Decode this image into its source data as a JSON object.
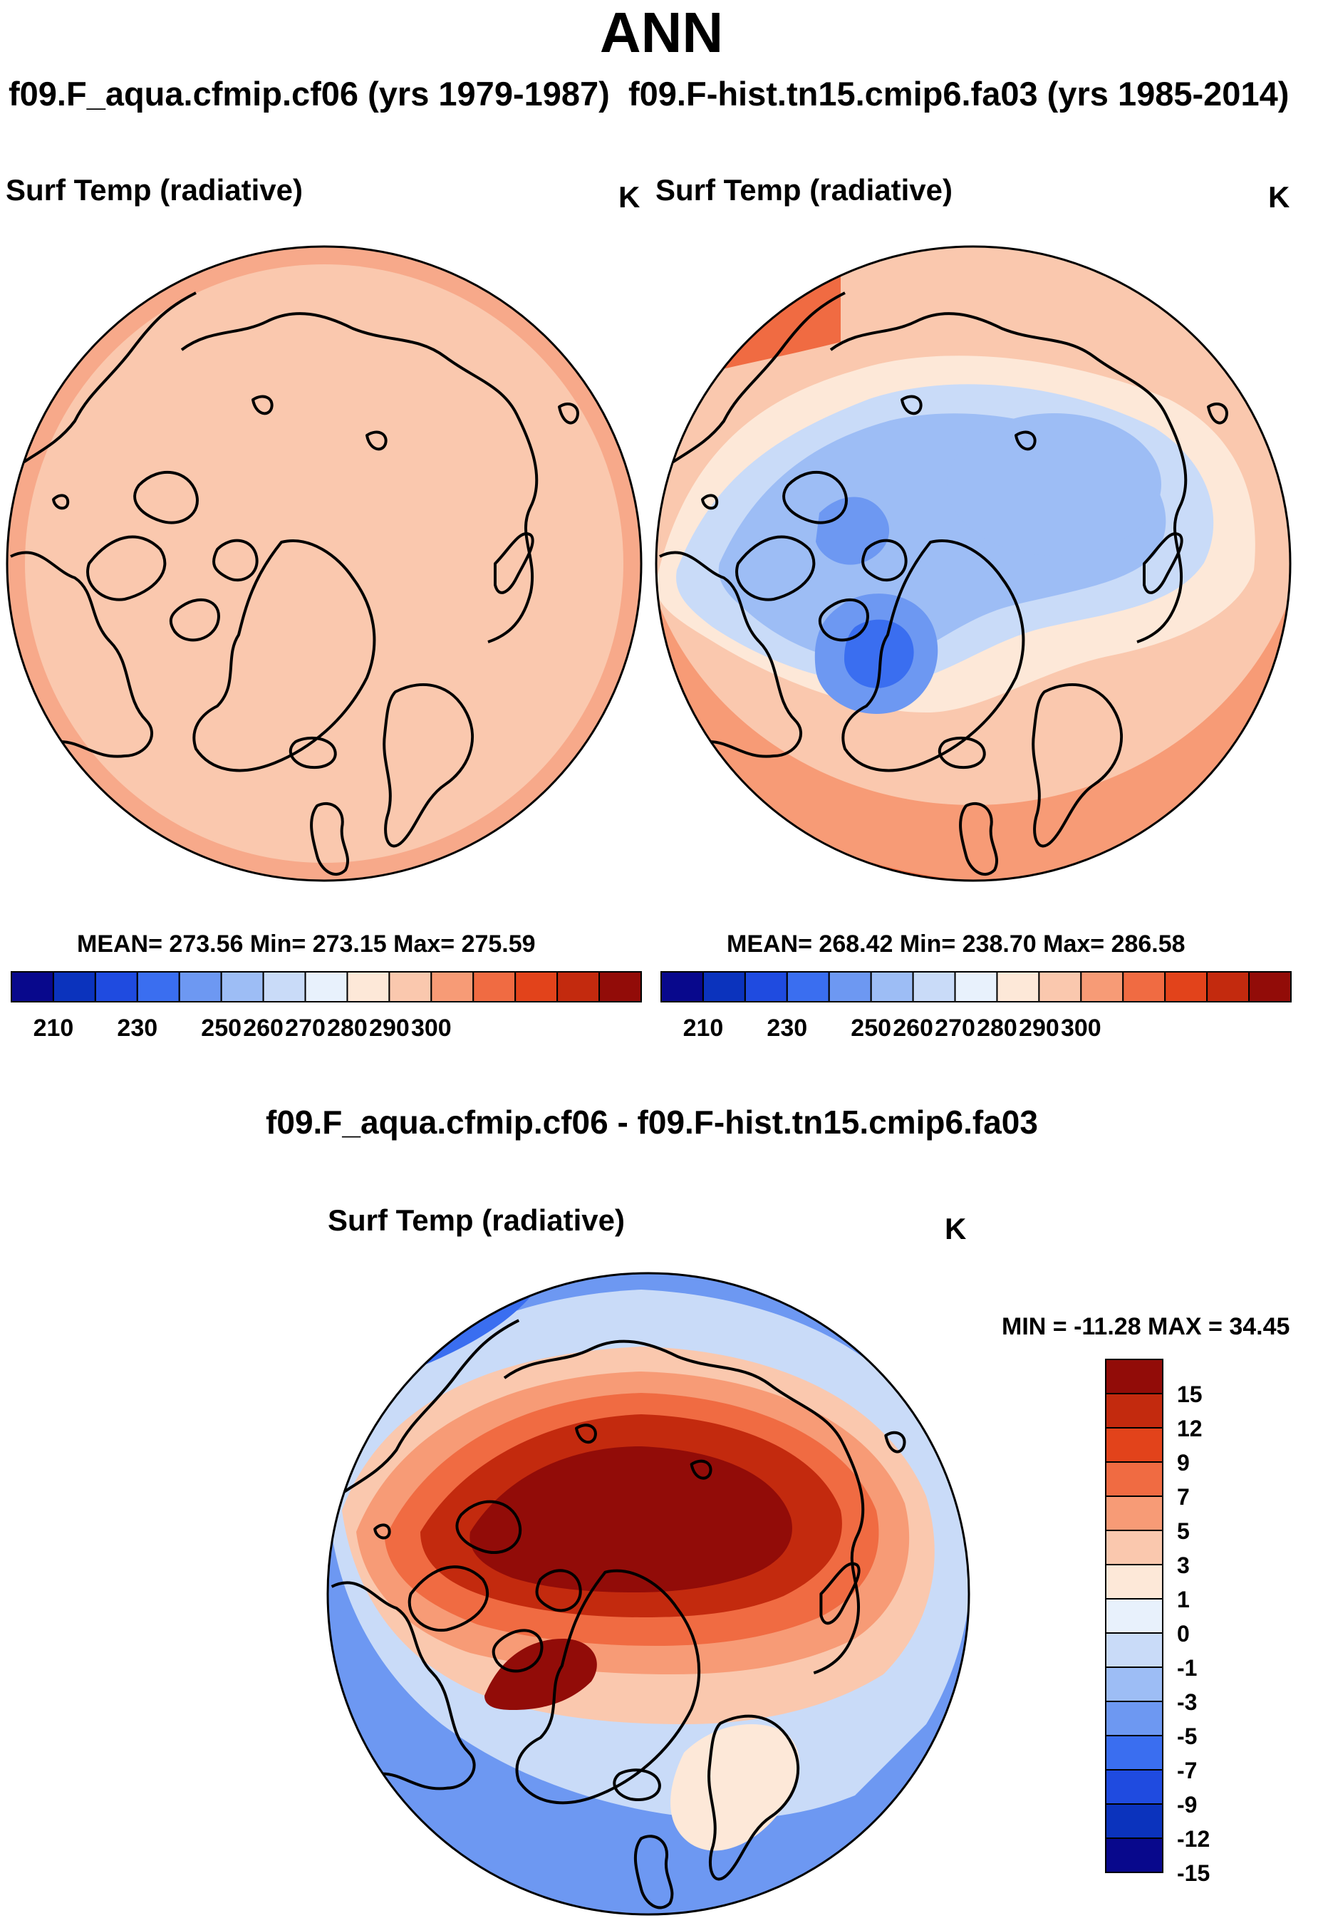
{
  "header": {
    "title": "ANN",
    "case1_title": "f09.F_aqua.cfmip.cf06 (yrs 1979-1987)",
    "case2_title": "f09.F-hist.tn15.cmip6.fa03 (yrs 1985-2014)"
  },
  "panel1": {
    "variable": "Surf Temp (radiative)",
    "units": "K",
    "stats": "MEAN= 273.56  Min= 273.15  Max= 275.59"
  },
  "panel2": {
    "variable": "Surf Temp (radiative)",
    "units": "K",
    "stats": "MEAN= 268.42  Min= 238.70  Max= 286.58"
  },
  "diff_panel": {
    "title": "f09.F_aqua.cfmip.cf06 - f09.F-hist.tn15.cmip6.fa03",
    "variable": "Surf Temp (radiative)",
    "units": "K",
    "range": "MIN = -11.28 MAX =  34.45"
  },
  "colorbar_abs": {
    "labels": [
      "210",
      "230",
      "250",
      "260",
      "270",
      "280",
      "290",
      "300"
    ],
    "colors": [
      "#08088c",
      "#0b33bd",
      "#1f4be0",
      "#3a6ef0",
      "#6d98f2",
      "#9dbdf5",
      "#c9dbf8",
      "#e8f1fc",
      "#fde8d8",
      "#fac8ae",
      "#f79b76",
      "#f06b42",
      "#e2431b",
      "#c32a0e",
      "#920c08"
    ]
  },
  "colorbar_diff": {
    "labels": [
      "15",
      "12",
      "9",
      "7",
      "5",
      "3",
      "1",
      "0",
      "-1",
      "-3",
      "-5",
      "-7",
      "-9",
      "-12",
      "-15"
    ],
    "colors": [
      "#920c08",
      "#c32a0e",
      "#e2431b",
      "#f06b42",
      "#f79b76",
      "#fac8ae",
      "#fde8d8",
      "#e8f1fc",
      "#c9dbf8",
      "#9dbdf5",
      "#6d98f2",
      "#3a6ef0",
      "#1f4be0",
      "#0b33bd",
      "#08088c"
    ]
  }
}
